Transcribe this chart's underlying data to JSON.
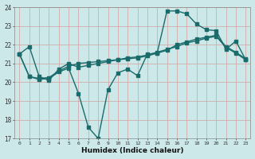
{
  "xlabel": "Humidex (Indice chaleur)",
  "bg_color": "#cce8e8",
  "grid_color": "#b8d8d8",
  "line_color": "#1a6b6b",
  "xlim": [
    -0.5,
    23.5
  ],
  "ylim": [
    17,
    24
  ],
  "xticks": [
    0,
    1,
    2,
    3,
    4,
    5,
    6,
    7,
    8,
    9,
    10,
    11,
    12,
    13,
    14,
    15,
    16,
    17,
    18,
    19,
    20,
    21,
    22,
    23
  ],
  "yticks": [
    17,
    18,
    19,
    20,
    21,
    22,
    23,
    24
  ],
  "line1_x": [
    0,
    1,
    2,
    3,
    4,
    5,
    6,
    7,
    8,
    9,
    10,
    11,
    12,
    13,
    14,
    15,
    16,
    17,
    18,
    19,
    20,
    21,
    22,
    23
  ],
  "line1_y": [
    21.5,
    21.9,
    20.3,
    20.1,
    20.7,
    21.0,
    20.8,
    20.9,
    21.0,
    21.1,
    21.2,
    21.3,
    21.35,
    21.45,
    21.6,
    21.75,
    21.9,
    22.1,
    22.2,
    22.35,
    22.45,
    21.85,
    21.55,
    21.2
  ],
  "line2_x": [
    0,
    1,
    2,
    3,
    4,
    5,
    6,
    7,
    8,
    9,
    10,
    11,
    12,
    13,
    14,
    15,
    16,
    17,
    18,
    19,
    20,
    21,
    22,
    23
  ],
  "line2_y": [
    21.5,
    20.3,
    20.15,
    20.2,
    20.55,
    20.75,
    19.4,
    17.6,
    17.0,
    19.6,
    20.5,
    20.7,
    20.35,
    21.5,
    21.55,
    23.8,
    23.8,
    23.65,
    23.1,
    22.8,
    22.75,
    21.75,
    22.2,
    21.2
  ],
  "line3_x": [
    0,
    1,
    2,
    3,
    4,
    5,
    6,
    7,
    8,
    9,
    10,
    11,
    12,
    13,
    14,
    15,
    16,
    17,
    18,
    19,
    20,
    21,
    22,
    23
  ],
  "line3_y": [
    21.5,
    20.3,
    20.2,
    20.25,
    20.6,
    20.85,
    21.0,
    21.05,
    21.1,
    21.15,
    21.2,
    21.25,
    21.3,
    21.4,
    21.55,
    21.7,
    22.0,
    22.15,
    22.3,
    22.4,
    22.5,
    21.9,
    21.6,
    21.25
  ]
}
